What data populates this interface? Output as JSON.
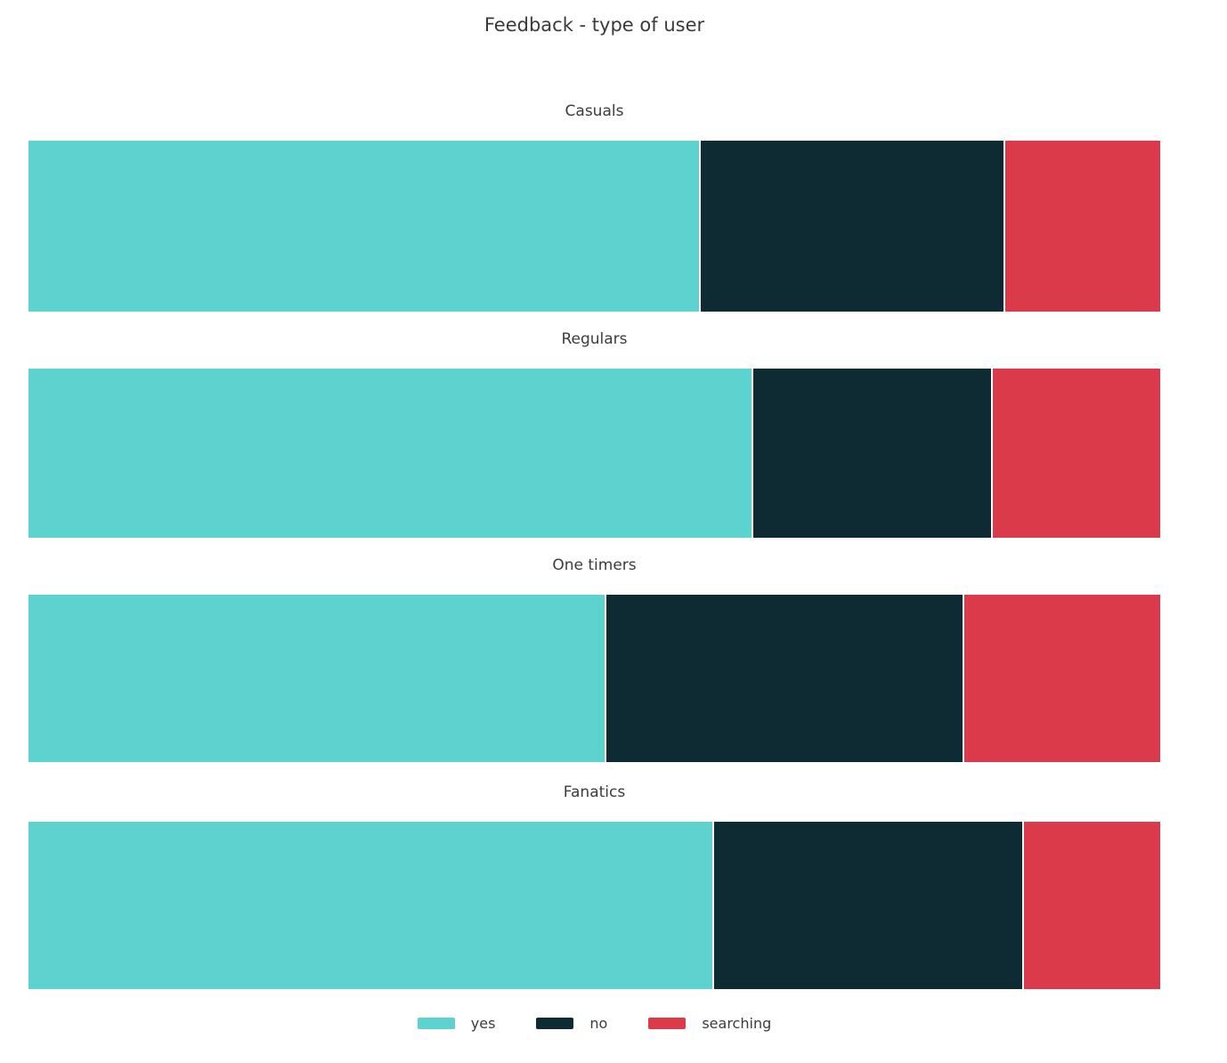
{
  "title": "Feedback - type of user",
  "colors": {
    "yes": "#5CD3CF",
    "no": "#0E2A33",
    "searching": "#DB3A4B"
  },
  "legend": {
    "items": [
      {
        "label": "yes",
        "color": "#5CD3CF"
      },
      {
        "label": "no",
        "color": "#0E2A33"
      },
      {
        "label": "searching",
        "color": "#DB3A4B"
      }
    ]
  },
  "chart_data": {
    "type": "bar",
    "orientation": "horizontal-stacked",
    "title": "Feedback - type of user",
    "categories": [
      "Casuals",
      "Regulars",
      "One timers",
      "Fanatics"
    ],
    "series": [
      {
        "name": "yes",
        "color": "#5CD3CF",
        "values": [
          59.4,
          64.1,
          51.1,
          60.6
        ]
      },
      {
        "name": "no",
        "color": "#0E2A33",
        "values": [
          26.9,
          21.1,
          31.5,
          27.3
        ]
      },
      {
        "name": "searching",
        "color": "#DB3A4B",
        "values": [
          13.7,
          14.8,
          17.4,
          12.1
        ]
      }
    ],
    "units": "percent",
    "xlim": [
      0,
      100
    ],
    "grid": false,
    "legend_position": "bottom",
    "xlabel": "",
    "ylabel": ""
  }
}
